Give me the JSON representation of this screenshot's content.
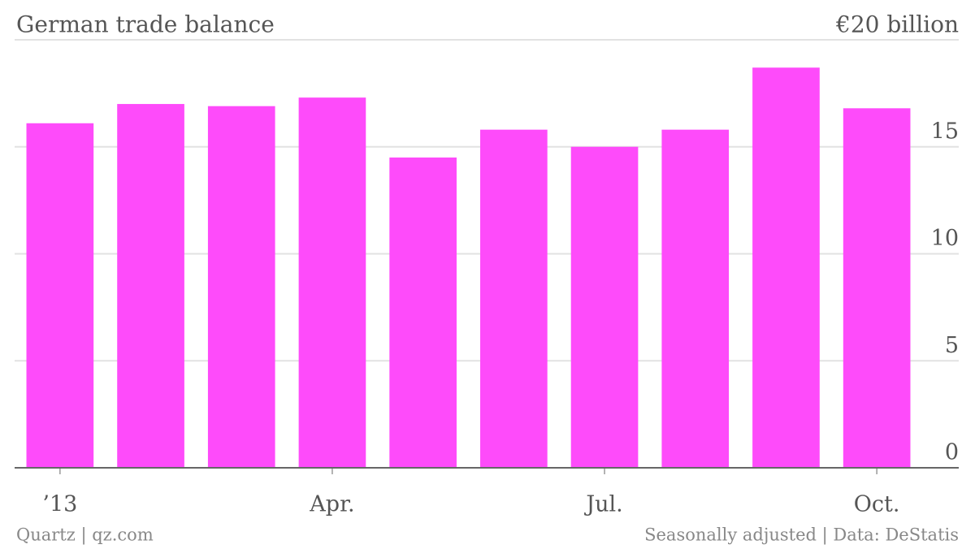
{
  "chart_data": {
    "type": "bar",
    "title": "German trade balance",
    "categories": [
      "’13",
      null,
      null,
      "Apr.",
      null,
      null,
      "Jul.",
      null,
      null,
      "Oct."
    ],
    "values": [
      16.1,
      17.0,
      16.9,
      17.3,
      14.5,
      15.8,
      15.0,
      15.8,
      18.7,
      16.8
    ],
    "color": "#fe4bfa",
    "ylim": [
      0,
      20
    ],
    "yticks": [
      0,
      5,
      10,
      15,
      {
        "value": 20,
        "label": "€20 billion"
      }
    ],
    "grid": true,
    "source": "Quartz | qz.com",
    "note": "Seasonally adjusted | Data: DeStatis"
  }
}
